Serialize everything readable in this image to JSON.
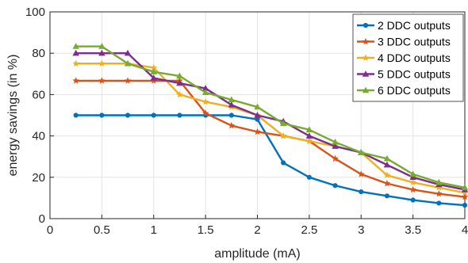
{
  "chart_data": {
    "type": "line",
    "title": "",
    "xlabel": "amplitude (mA)",
    "ylabel": "energy savings (in %)",
    "xlim": [
      0,
      4
    ],
    "ylim": [
      0,
      100
    ],
    "xticks": [
      "0",
      "0.5",
      "1",
      "1.5",
      "2",
      "2.5",
      "3",
      "3.5",
      "4"
    ],
    "yticks": [
      "0",
      "20",
      "40",
      "60",
      "80",
      "100"
    ],
    "grid": true,
    "legend_position": "top-right",
    "x": [
      0.25,
      0.5,
      0.75,
      1.0,
      1.25,
      1.5,
      1.75,
      2.0,
      2.25,
      2.5,
      2.75,
      3.0,
      3.25,
      3.5,
      3.75,
      4.0
    ],
    "series": [
      {
        "name": "2 DDC outputs",
        "color": "#0072BD",
        "marker": "circle",
        "values": [
          50,
          50,
          50,
          50,
          50,
          50,
          50,
          48,
          27,
          20,
          16,
          13,
          11,
          9,
          7.5,
          6.5
        ]
      },
      {
        "name": "3 DDC outputs",
        "color": "#D95319",
        "marker": "star",
        "values": [
          66.7,
          66.7,
          66.7,
          66.7,
          66.7,
          51,
          45,
          42,
          40,
          37.5,
          29,
          21.5,
          17,
          14,
          12,
          10.5
        ]
      },
      {
        "name": "4 DDC outputs",
        "color": "#EDB120",
        "marker": "star",
        "values": [
          75,
          75,
          75,
          73,
          60,
          56.5,
          54,
          50,
          40,
          37.5,
          35,
          32,
          21,
          17.5,
          15,
          12.5
        ]
      },
      {
        "name": "5 DDC outputs",
        "color": "#7E2F8E",
        "marker": "triangle",
        "values": [
          80,
          80,
          80,
          68,
          65.5,
          63,
          55,
          50,
          47,
          40,
          35,
          32,
          26,
          20,
          16.5,
          14
        ]
      },
      {
        "name": "6 DDC outputs",
        "color": "#77AC30",
        "marker": "triangle",
        "values": [
          83.3,
          83.3,
          75,
          71,
          69,
          61,
          57.5,
          54,
          46,
          43,
          37,
          32,
          29,
          21.5,
          17.5,
          15
        ]
      }
    ]
  }
}
